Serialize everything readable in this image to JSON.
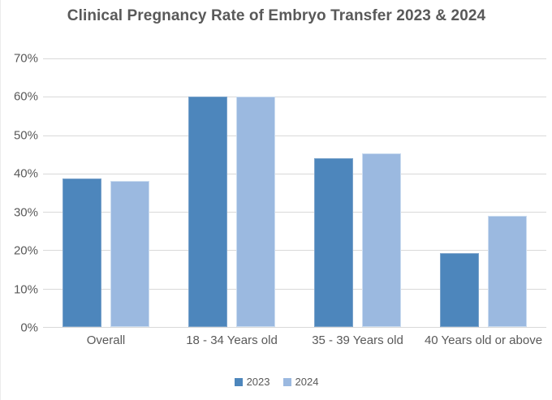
{
  "chart_data": {
    "type": "bar",
    "title": "Clinical Pregnancy Rate of Embryo Transfer 2023 & 2024",
    "categories": [
      "Overall",
      "18 - 34 Years old",
      "35 - 39 Years old",
      "40 Years old or above"
    ],
    "series": [
      {
        "name": "2023",
        "color": "#4D86BC",
        "border_color": "#7BA3CB",
        "values": [
          38.7,
          60.0,
          44.0,
          19.2
        ]
      },
      {
        "name": "2024",
        "color": "#9BB9E0",
        "border_color": "#CBDCF0",
        "values": [
          38.0,
          60.0,
          45.3,
          28.9
        ]
      }
    ],
    "xlabel": "",
    "ylabel": "",
    "ylim": [
      0,
      70
    ],
    "ytick_step": 10,
    "ytick_labels": [
      "0%",
      "10%",
      "20%",
      "30%",
      "40%",
      "50%",
      "60%",
      "70%"
    ],
    "grid": true,
    "legend_position": "bottom"
  },
  "style": {
    "text_color": "#595959",
    "gridline_color": "#D9D9D9",
    "axis_line_color": "#D9D9D9",
    "background_color": "#FFFFFF"
  }
}
